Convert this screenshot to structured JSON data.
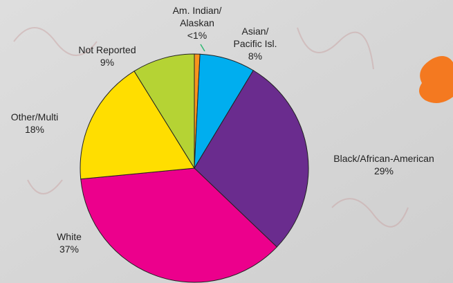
{
  "chart_data": {
    "type": "pie",
    "categories": [
      "Am. Indian/\nAlaskan",
      "Asian/\nPacific Isl.",
      "Black/African-American",
      "White",
      "Other/Multi",
      "Not Reported"
    ],
    "values": [
      0.8,
      8,
      29,
      37,
      18,
      9
    ],
    "value_labels": [
      "<1%",
      "8%",
      "29%",
      "37%",
      "18%",
      "9%"
    ],
    "colors": [
      "#f7941d",
      "#00aeef",
      "#6a2c8e",
      "#ec008c",
      "#ffde00",
      "#b5d334"
    ]
  }
}
